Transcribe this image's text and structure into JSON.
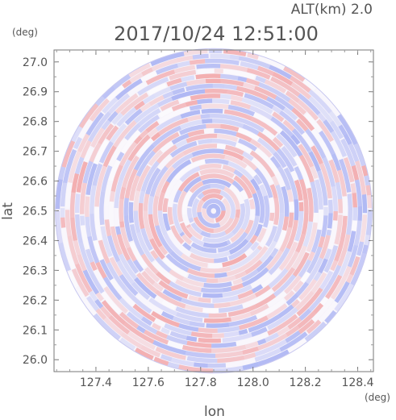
{
  "header": {
    "altitude_label": "ALT(km)  2.0",
    "timestamp": "2017/10/24 12:51:00"
  },
  "colors": {
    "positive": "#f08080",
    "negative": "#8090f0",
    "axis": "#555555"
  },
  "chart_data": {
    "type": "heatmap",
    "title": "2017/10/24 12:51:00",
    "xlabel": "lon",
    "ylabel": "lat",
    "x_unit": "(deg)",
    "y_unit": "(deg)",
    "xlim": [
      127.24,
      128.46
    ],
    "ylim": [
      25.96,
      27.04
    ],
    "x_ticks": [
      127.4,
      127.6,
      127.8,
      128.0,
      128.2,
      128.4
    ],
    "x_tick_labels": [
      "127.4",
      "127.6",
      "127.8",
      "128.0",
      "128.2",
      "128.4"
    ],
    "y_ticks": [
      26.0,
      26.1,
      26.2,
      26.3,
      26.4,
      26.5,
      26.6,
      26.7,
      26.8,
      26.9,
      27.0
    ],
    "y_tick_labels": [
      "26.0",
      "26.1",
      "26.2",
      "26.3",
      "26.4",
      "26.5",
      "26.6",
      "26.7",
      "26.8",
      "26.9",
      "27.0"
    ],
    "center": {
      "lon": 127.85,
      "lat": 26.5
    },
    "radius_deg": {
      "lon": 0.605,
      "lat": 0.545
    },
    "grid": false,
    "legend": "none"
  }
}
